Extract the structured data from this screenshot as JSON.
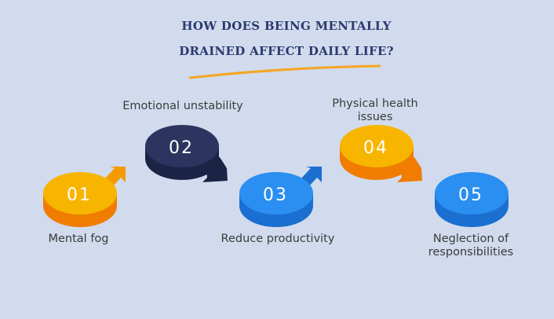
{
  "title": {
    "line1": "HOW DOES BEING MENTALLY",
    "line2": "DRAINED AFFECT DAILY LIFE?"
  },
  "steps": [
    {
      "number": "01",
      "label": "Mental fog",
      "color": "#f7b500"
    },
    {
      "number": "02",
      "label": "Emotional unstability",
      "color": "#2b3560"
    },
    {
      "number": "03",
      "label": "Reduce productivity",
      "color": "#2a8ff0"
    },
    {
      "number": "04",
      "label": "Physical health\nissues",
      "color": "#f7b500"
    },
    {
      "number": "05",
      "label": "Neglection of\nresponsibilities",
      "color": "#2a8ff0"
    }
  ],
  "colors": {
    "background": "#d1dbed",
    "title": "#2a3a6e",
    "underline": "#f5a623"
  }
}
